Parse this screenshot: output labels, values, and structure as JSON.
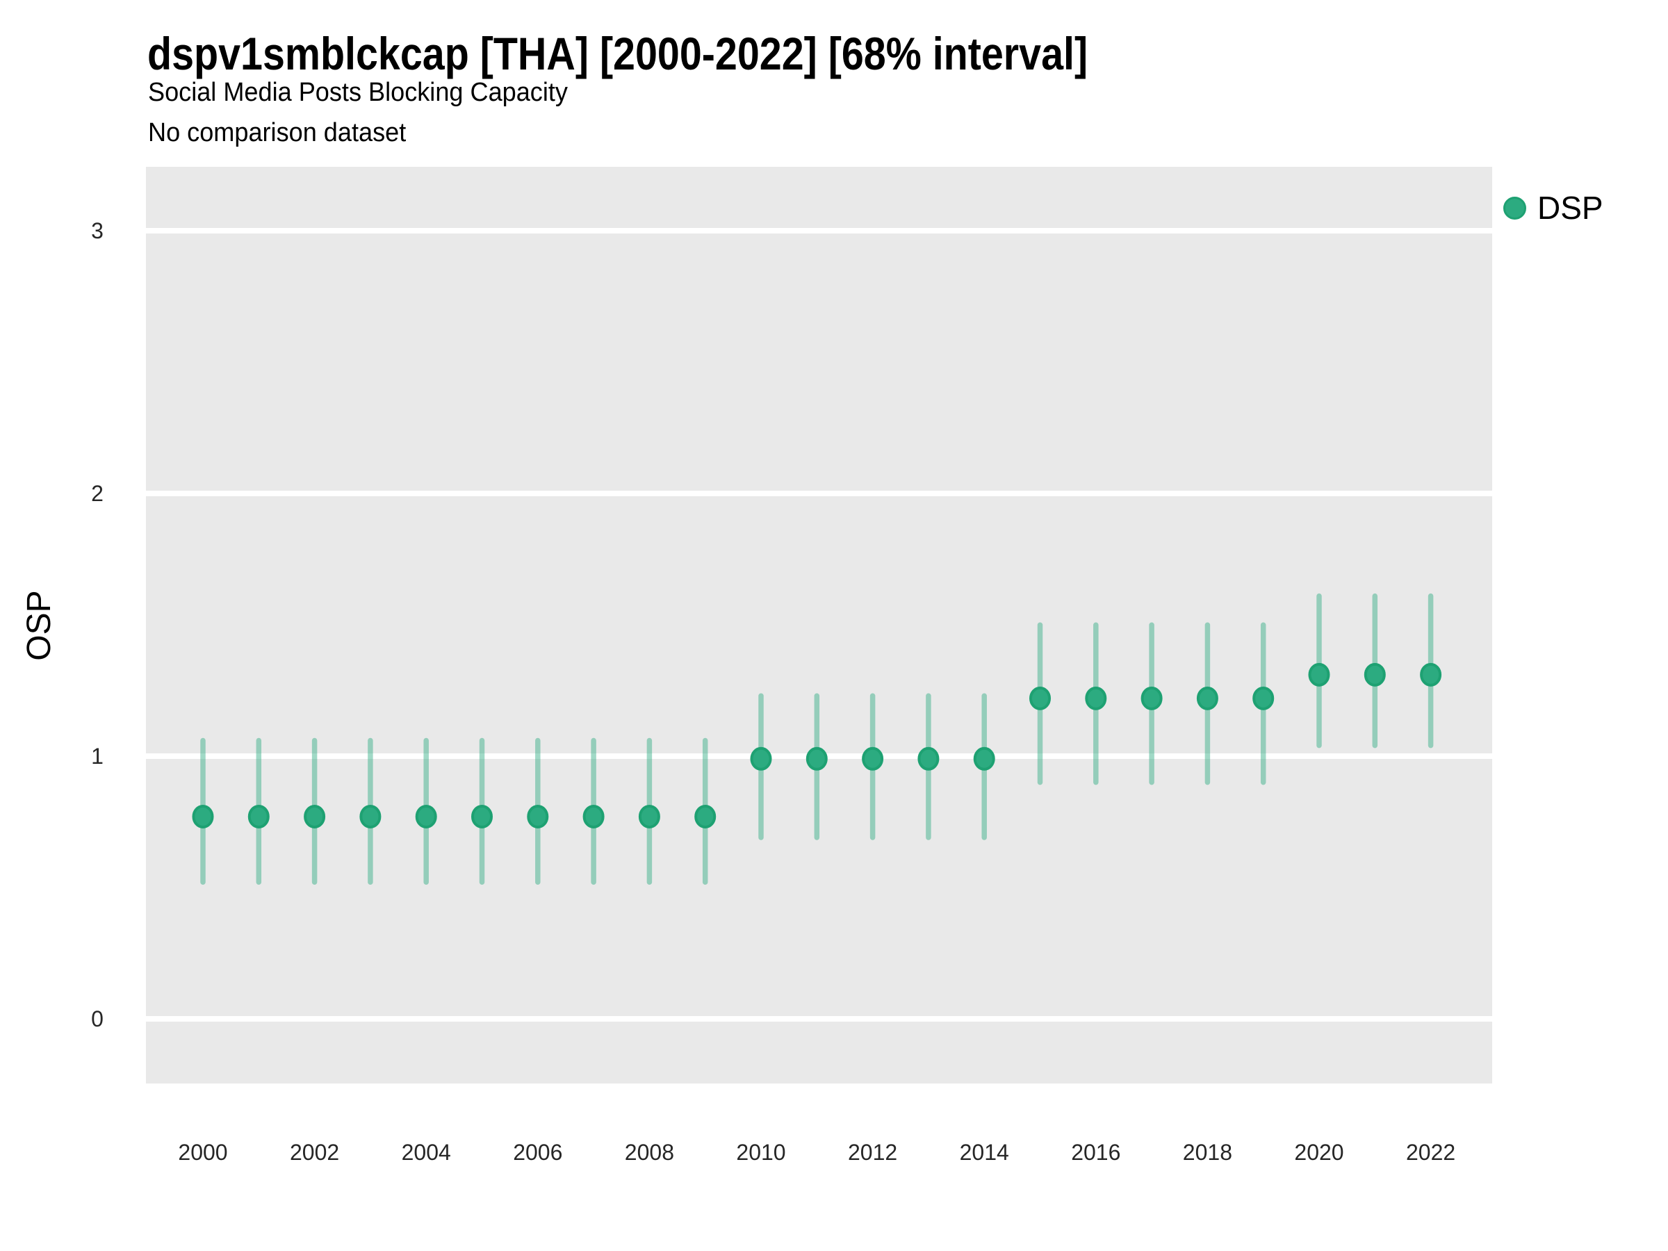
{
  "header": {
    "title": "dspv1smblckcap [THA] [2000-2022] [68% interval]",
    "subtitle": "Social Media Posts Blocking Capacity",
    "note": "No comparison dataset"
  },
  "axes": {
    "y_label": "OSP"
  },
  "legend": {
    "position": "right",
    "items": [
      {
        "label": "DSP",
        "marker": "circle-icon",
        "color": "#2CAB80"
      }
    ]
  },
  "colors": {
    "page_bg": "#FFFFFF",
    "panel_bg": "#E9E9E9",
    "gridline": "#FFFFFF",
    "point_fill": "#2CAB80",
    "point_stroke": "#1EA172",
    "interval_bar": "rgba(44,171,128,0.45)",
    "tick_text": "#262626",
    "text": "#000000"
  },
  "chart_data": {
    "type": "scatter",
    "title": "dspv1smblckcap [THA] [2000-2022] [68% interval]",
    "subtitle": "Social Media Posts Blocking Capacity",
    "note": "No comparison dataset",
    "xlabel": "",
    "ylabel": "OSP",
    "interval_label": "68% interval",
    "grid": "horizontal-only",
    "legend_position": "right",
    "x": [
      2000,
      2001,
      2002,
      2003,
      2004,
      2005,
      2006,
      2007,
      2008,
      2009,
      2010,
      2011,
      2012,
      2013,
      2014,
      2015,
      2016,
      2017,
      2018,
      2019,
      2020,
      2021,
      2022
    ],
    "x_ticks": [
      2000,
      2002,
      2004,
      2006,
      2008,
      2010,
      2012,
      2014,
      2016,
      2018,
      2020,
      2022
    ],
    "y_ticks": [
      0,
      1,
      2,
      3
    ],
    "ylim": [
      -0.24,
      3.25
    ],
    "series": [
      {
        "name": "DSP",
        "values": [
          0.77,
          0.77,
          0.77,
          0.77,
          0.77,
          0.77,
          0.77,
          0.77,
          0.77,
          0.77,
          0.99,
          0.99,
          0.99,
          0.99,
          0.99,
          1.22,
          1.22,
          1.22,
          1.22,
          1.22,
          1.31,
          1.31,
          1.31
        ],
        "lower": [
          0.51,
          0.51,
          0.51,
          0.51,
          0.51,
          0.51,
          0.51,
          0.51,
          0.51,
          0.51,
          0.68,
          0.68,
          0.68,
          0.68,
          0.68,
          0.89,
          0.89,
          0.89,
          0.89,
          0.89,
          1.03,
          1.03,
          1.03
        ],
        "upper": [
          1.07,
          1.07,
          1.07,
          1.07,
          1.07,
          1.07,
          1.07,
          1.07,
          1.07,
          1.07,
          1.24,
          1.24,
          1.24,
          1.24,
          1.24,
          1.51,
          1.51,
          1.51,
          1.51,
          1.51,
          1.62,
          1.62,
          1.62
        ]
      }
    ]
  }
}
